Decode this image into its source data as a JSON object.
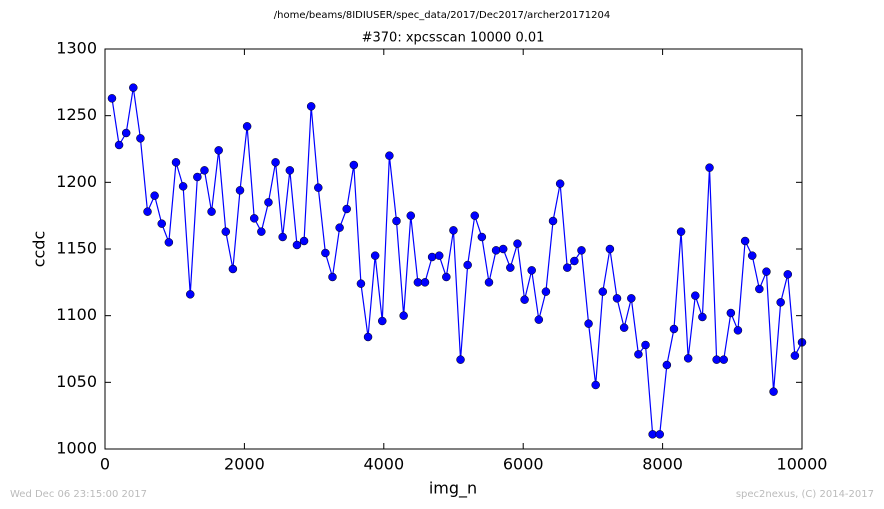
{
  "header": "/home/beams/8IDIUSER/spec_data/2017/Dec2017/archer20171204",
  "footer": {
    "left": "Wed Dec 06 23:15:00 2017",
    "right": "spec2nexus, (C) 2014-2017"
  },
  "chart_data": {
    "type": "line",
    "title": "#370: xpcsscan 10000 0.01",
    "x_label": "img_n",
    "y_label": "ccdc",
    "x": [
      100,
      202,
      304,
      406,
      508,
      610,
      712,
      814,
      916,
      1019,
      1121,
      1223,
      1325,
      1427,
      1529,
      1631,
      1733,
      1835,
      1937,
      2039,
      2141,
      2243,
      2345,
      2447,
      2549,
      2652,
      2754,
      2856,
      2958,
      3060,
      3162,
      3264,
      3366,
      3468,
      3570,
      3672,
      3774,
      3876,
      3978,
      4080,
      4182,
      4285,
      4387,
      4489,
      4591,
      4693,
      4795,
      4897,
      4999,
      5101,
      5203,
      5305,
      5407,
      5509,
      5611,
      5713,
      5815,
      5918,
      6020,
      6122,
      6224,
      6326,
      6428,
      6530,
      6632,
      6734,
      6836,
      6938,
      7040,
      7142,
      7244,
      7346,
      7448,
      7551,
      7653,
      7755,
      7857,
      7959,
      8061,
      8163,
      8265,
      8367,
      8469,
      8571,
      8673,
      8775,
      8877,
      8979,
      9081,
      9184,
      9286,
      9388,
      9490,
      9592,
      9694,
      9796,
      9898,
      10000
    ],
    "series": [
      {
        "color": "#0000ff",
        "values": [
          1263,
          1228,
          1237,
          1271,
          1233,
          1178,
          1190,
          1169,
          1155,
          1215,
          1197,
          1116,
          1204,
          1209,
          1178,
          1224,
          1163,
          1135,
          1194,
          1242,
          1173,
          1163,
          1185,
          1215,
          1159,
          1209,
          1153,
          1156,
          1257,
          1196,
          1147,
          1129,
          1166,
          1180,
          1213,
          1124,
          1084,
          1145,
          1096,
          1220,
          1171,
          1100,
          1175,
          1125,
          1125,
          1144,
          1145,
          1129,
          1164,
          1067,
          1138,
          1175,
          1159,
          1125,
          1149,
          1150,
          1136,
          1154,
          1112,
          1134,
          1097,
          1118,
          1171,
          1199,
          1136,
          1141,
          1149,
          1094,
          1048,
          1118,
          1150,
          1113,
          1091,
          1113,
          1071,
          1078,
          1011,
          1011,
          1063,
          1090,
          1163,
          1068,
          1115,
          1099,
          1211,
          1067,
          1067,
          1102,
          1089,
          1156,
          1145,
          1120,
          1133,
          1043,
          1110,
          1131,
          1070,
          1080
        ]
      }
    ],
    "xlim": [
      0,
      10000
    ],
    "xticks": [
      0,
      2000,
      4000,
      6000,
      8000,
      10000
    ],
    "ylim": [
      1000,
      1300
    ],
    "yticks": [
      1000,
      1050,
      1100,
      1150,
      1200,
      1250,
      1300
    ],
    "grid": false
  }
}
